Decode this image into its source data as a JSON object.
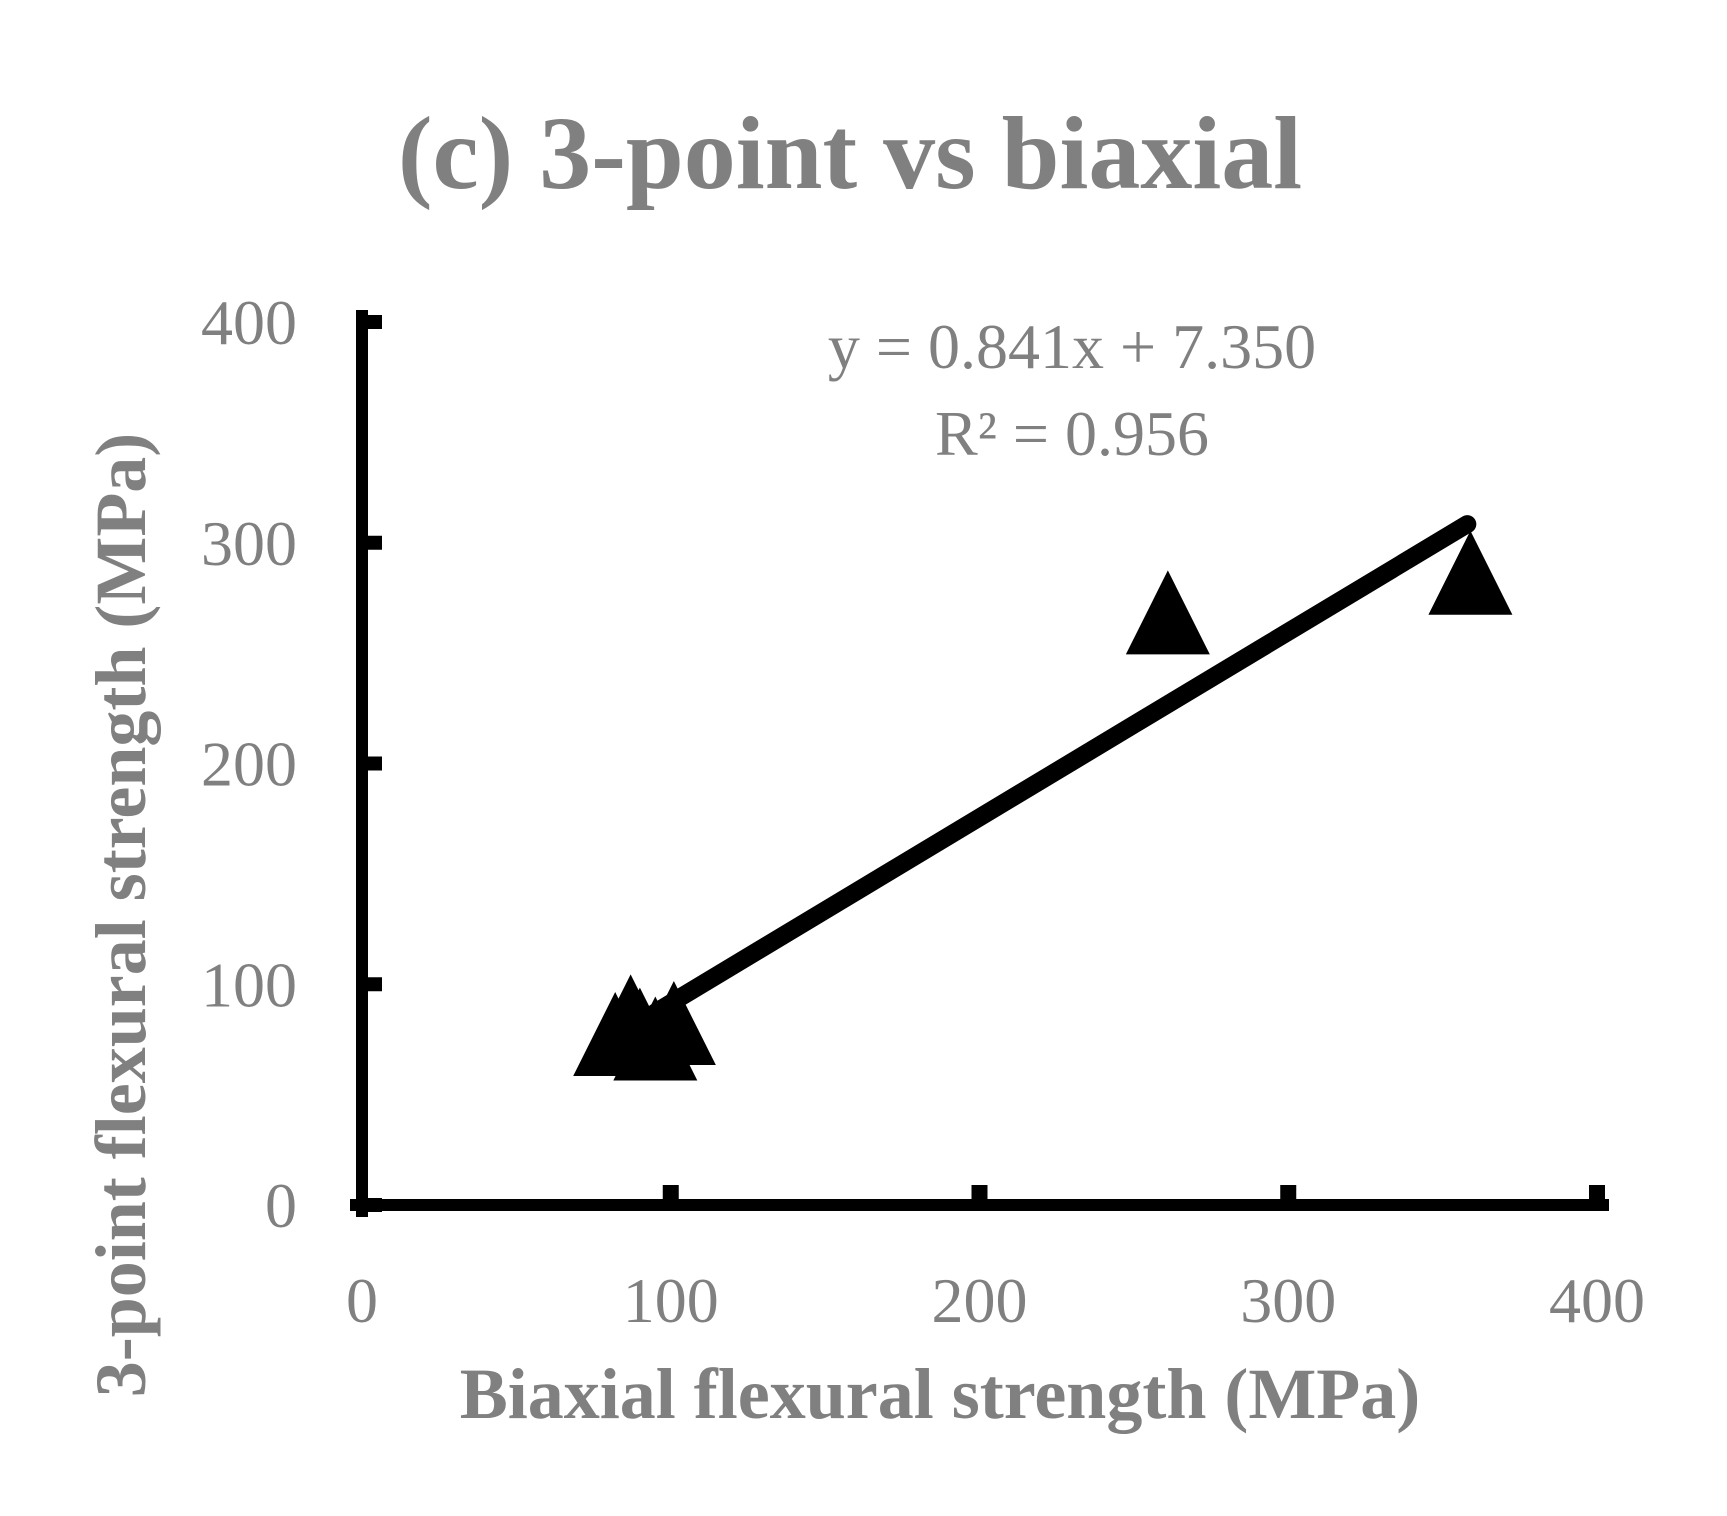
{
  "chart_data": {
    "type": "scatter",
    "title": "(c) 3-point vs biaxial",
    "xlabel": "Biaxial flexural strength (MPa)",
    "ylabel": "3-point flexural strength (MPa)",
    "xlim": [
      0,
      400
    ],
    "ylim": [
      0,
      400
    ],
    "x_ticks": [
      "0",
      "100",
      "200",
      "300",
      "400"
    ],
    "y_ticks": [
      "0",
      "100",
      "200",
      "300",
      "400"
    ],
    "grid": false,
    "legend": "none",
    "marker": "triangle",
    "marker_color": "#000000",
    "points": [
      {
        "x": 82,
        "y": 72
      },
      {
        "x": 87,
        "y": 80
      },
      {
        "x": 90,
        "y": 74
      },
      {
        "x": 95,
        "y": 70
      },
      {
        "x": 101,
        "y": 77
      },
      {
        "x": 261,
        "y": 263
      },
      {
        "x": 359,
        "y": 281
      }
    ],
    "trendline": {
      "slope": 0.841,
      "intercept": 7.35,
      "x_range": [
        95,
        358
      ]
    },
    "annotations": {
      "equation": "y = 0.841x + 7.350",
      "r_squared": "R² = 0.956"
    }
  }
}
